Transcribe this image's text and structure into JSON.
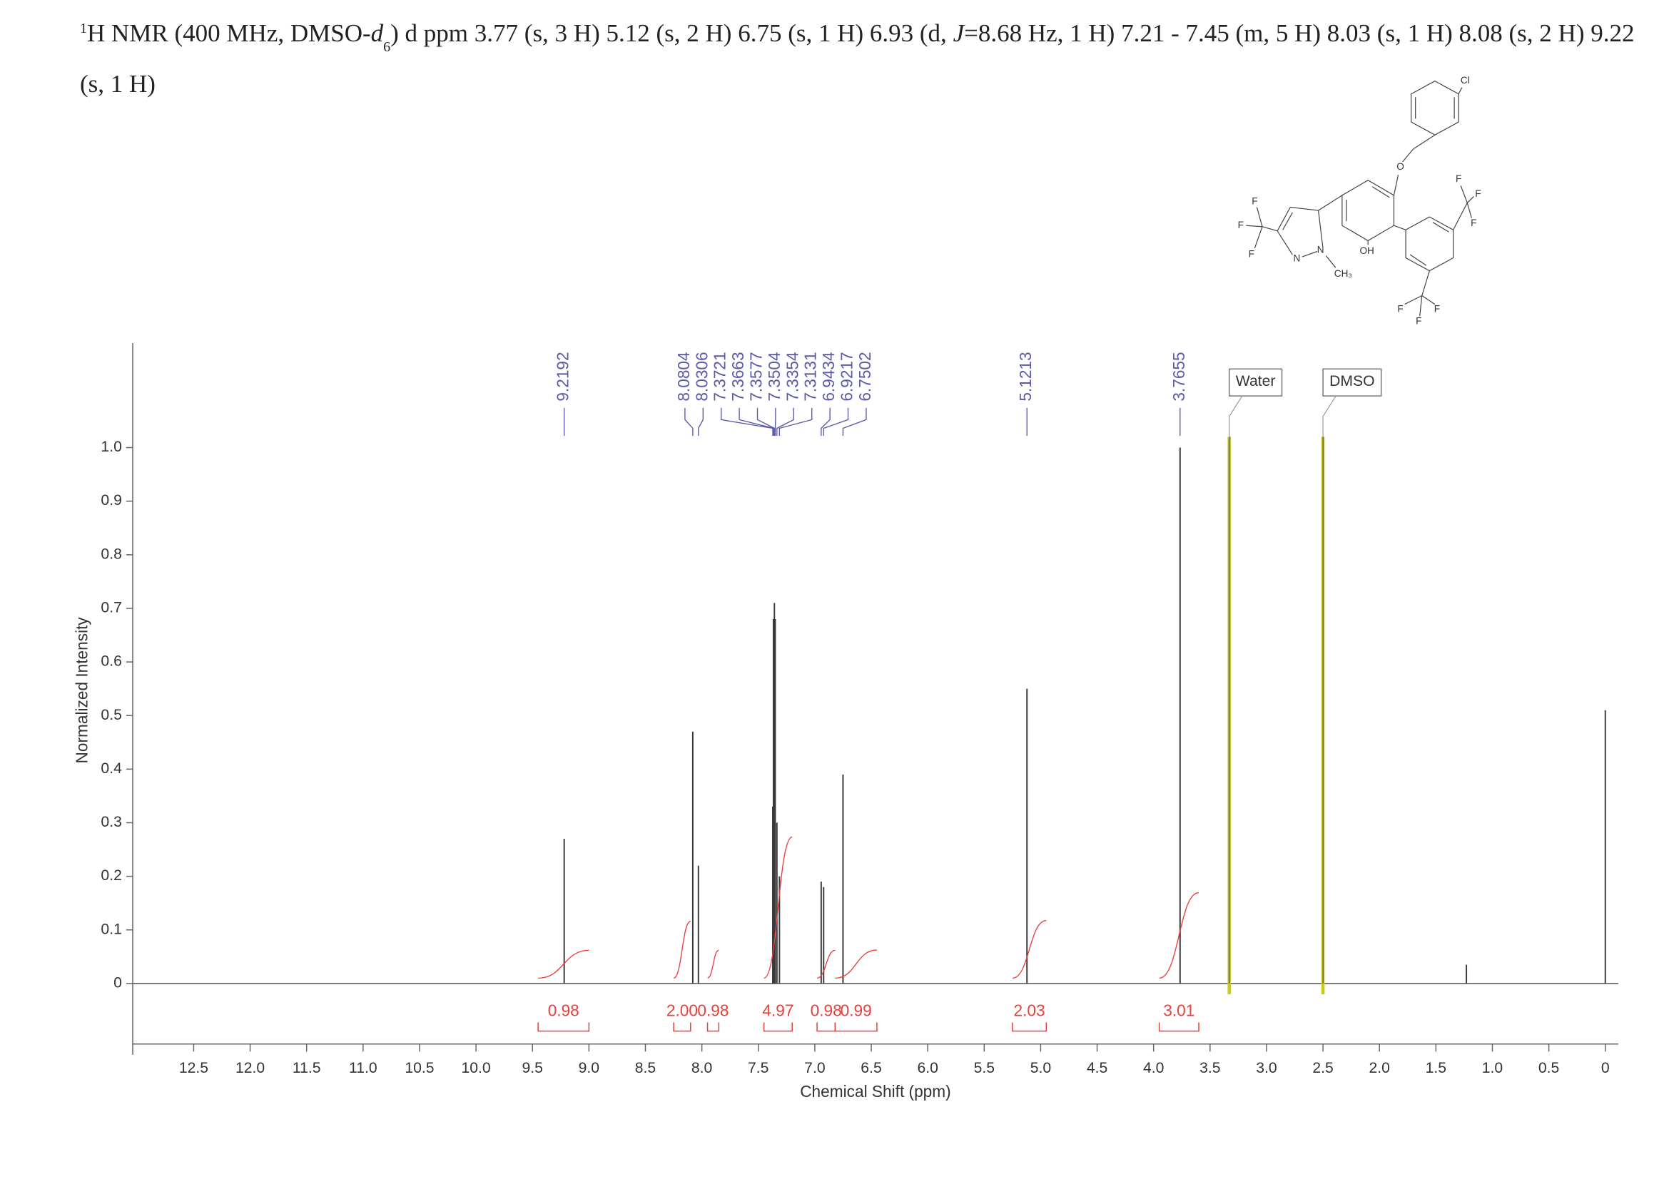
{
  "chart_data": {
    "type": "nmr",
    "title": [
      "1",
      "H NMR (400 MHz, DMSO-",
      "d",
      "6",
      ") d ppm 3.77 (s, 3 H) 5.12 (s, 2 H) 6.75 (s, 1 H) 6.93 (d, ",
      "J",
      "=8.68 Hz, 1 H) 7.21 - 7.45 (m, 5 H) 8.03 (s, 1 H) 8.08 (s, 2 H) 9.22 (s, 1 H)"
    ],
    "x_label": "Chemical Shift (ppm)",
    "y_label": "Normalized Intensity",
    "xlim": [
      13.04,
      -0.115
    ],
    "ylim": [
      -0.113,
      1.195
    ],
    "xticks": [
      12.5,
      {
        "value": 12,
        "label": "12.0"
      },
      11.5,
      {
        "value": 11,
        "label": "11.0"
      },
      10.5,
      {
        "value": 10,
        "label": "10.0"
      },
      9.5,
      {
        "value": 9,
        "label": "9.0"
      },
      8.5,
      {
        "value": 8,
        "label": "8.0"
      },
      7.5,
      {
        "value": 7,
        "label": "7.0"
      },
      6.5,
      {
        "value": 6,
        "label": "6.0"
      },
      5.5,
      {
        "value": 5,
        "label": "5.0"
      },
      4.5,
      {
        "value": 4,
        "label": "4.0"
      },
      3.5,
      {
        "value": 3,
        "label": "3.0"
      },
      2.5,
      {
        "value": 2,
        "label": "2.0"
      },
      1.5,
      {
        "value": 1,
        "label": "1.0"
      },
      0.5,
      0
    ],
    "yticks": [
      0,
      0.1,
      0.2,
      0.3,
      0.4,
      0.5,
      0.6,
      0.7,
      0.8,
      0.9,
      {
        "value": 1,
        "label": "1.0"
      }
    ],
    "peaks": {
      "color": "#3a3a3a",
      "x": [
        9.2192,
        8.0804,
        8.0306,
        7.3721,
        7.3663,
        7.3577,
        7.3504,
        7.3354,
        7.3131,
        6.9434,
        6.9217,
        6.7502,
        5.1213,
        3.7655,
        1.23,
        0.0
      ],
      "values": [
        0.27,
        0.47,
        0.22,
        0.33,
        0.68,
        0.71,
        0.68,
        0.3,
        0.2,
        0.19,
        0.18,
        0.39,
        0.55,
        1.0,
        0.035,
        0.51
      ]
    },
    "peak_labels": {
      "color": "#5a5aa8",
      "values": [
        9.2192,
        8.0804,
        8.0306,
        7.3721,
        7.3663,
        7.3577,
        7.3504,
        7.3354,
        7.3131,
        6.9434,
        6.9217,
        6.7502,
        5.1213,
        3.7655
      ]
    },
    "solvent_peaks": {
      "color": "#c8c81e",
      "names": [
        "Water",
        "DMSO"
      ],
      "x": [
        3.33,
        2.5
      ],
      "values": [
        1.02,
        1.02
      ]
    },
    "integrals": {
      "color": "#e8403c",
      "ranges": [
        [
          9.45,
          9.0
        ],
        [
          8.25,
          8.1
        ],
        [
          7.95,
          7.85
        ],
        [
          7.45,
          7.2
        ],
        [
          6.98,
          6.82
        ],
        [
          6.82,
          6.45
        ],
        [
          5.25,
          4.95
        ],
        [
          3.95,
          3.6
        ]
      ],
      "values": [
        0.98,
        2,
        0.98,
        4.97,
        0.98,
        0.99,
        2.03,
        3.01
      ],
      "value_labels": [
        "0.98",
        "2.00",
        "0.98",
        "4.97",
        "0.98",
        "0.99",
        "2.03",
        "3.01"
      ]
    },
    "structure_labels": [
      "Cl",
      "O",
      "F",
      "F",
      "F",
      "OH",
      "F",
      "F",
      "F",
      "N",
      "N",
      "CH₃",
      "F",
      "F",
      "F"
    ]
  }
}
